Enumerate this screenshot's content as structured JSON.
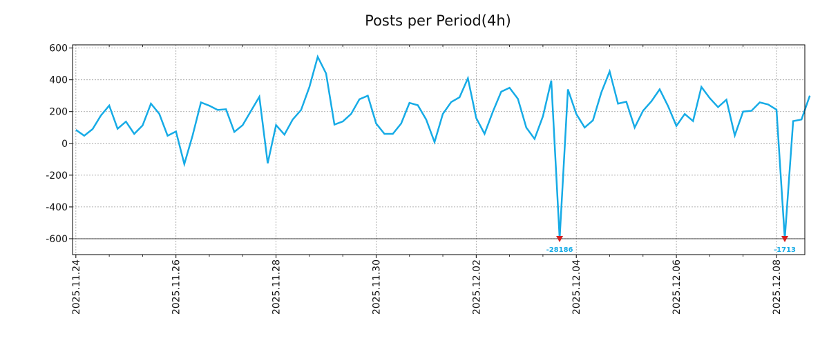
{
  "chart_data": {
    "type": "line",
    "title": "Posts per Period(4h)",
    "xlabel": "",
    "ylabel": "",
    "ylim": [
      -700,
      620
    ],
    "xlim": [
      -0.4,
      87.4
    ],
    "grid": true,
    "y_ticks": [
      600,
      400,
      200,
      0,
      -200,
      -400,
      -600
    ],
    "y_tick_labels": [
      "600",
      "400",
      "200",
      "0",
      "-200",
      "-400",
      "-600"
    ],
    "x_ticks": [
      0,
      12,
      24,
      36,
      48,
      60,
      72,
      84
    ],
    "x_tick_labels": [
      "2025.11.24",
      "2025.11.26",
      "2025.11.28",
      "2025.11.30",
      "2025.12.02",
      "2025.12.04",
      "2025.12.06",
      "2025.12.08"
    ],
    "clip_line": -600,
    "series": [
      {
        "name": "",
        "color": "#16abe6",
        "values": [
          85,
          48,
          90,
          175,
          238,
          92,
          137,
          60,
          113,
          250,
          186,
          48,
          75,
          -130,
          50,
          258,
          237,
          210,
          215,
          72,
          115,
          205,
          293,
          -125,
          115,
          55,
          150,
          210,
          355,
          545,
          440,
          118,
          138,
          185,
          278,
          300,
          125,
          60,
          60,
          125,
          255,
          240,
          150,
          8,
          185,
          260,
          290,
          410,
          160,
          60,
          200,
          325,
          350,
          280,
          100,
          28,
          170,
          395,
          -600,
          340,
          185,
          100,
          145,
          320,
          453,
          250,
          262,
          100,
          205,
          265,
          340,
          235,
          110,
          185,
          140,
          355,
          285,
          228,
          275,
          50,
          200,
          205,
          258,
          245,
          212,
          -600,
          140,
          150,
          300
        ]
      }
    ],
    "annotations": [
      {
        "x": 58,
        "y": -600,
        "text": "-28186",
        "color": "#16abe6",
        "marker_color": "#d42020"
      },
      {
        "x": 85,
        "y": -600,
        "text": "-1713",
        "color": "#16abe6",
        "marker_color": "#d42020"
      }
    ]
  }
}
